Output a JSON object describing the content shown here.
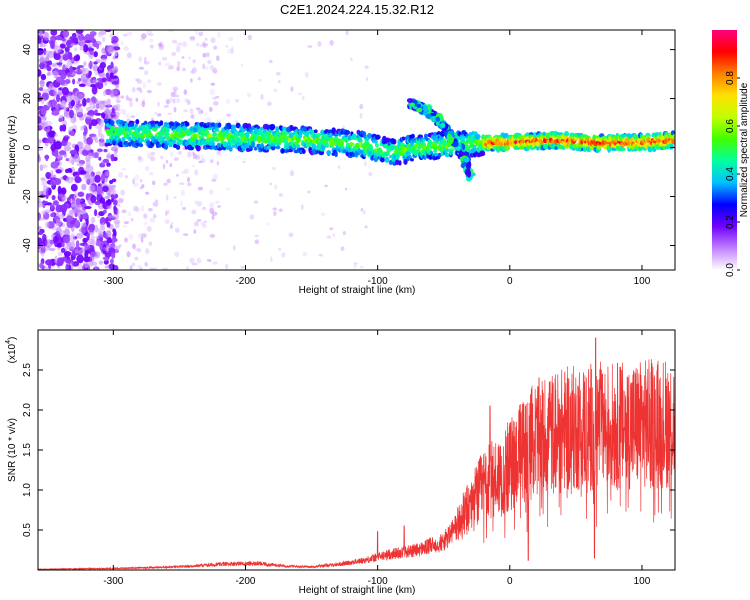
{
  "title": "C2E1.2024.224.15.32.R12",
  "chart_data": [
    {
      "type": "heatmap",
      "xlabel": "Height of straight line (km)",
      "ylabel": "Frequency (Hz)",
      "xlim": [
        -357,
        125
      ],
      "ylim": [
        -50,
        48
      ],
      "x_ticks": [
        -300,
        -200,
        -100,
        0,
        100
      ],
      "y_ticks": [
        -40,
        -20,
        0,
        20,
        40
      ],
      "colorbar": {
        "label": "Normalized spectral amplitude",
        "range": [
          0,
          1
        ],
        "ticks": [
          0.0,
          0.2,
          0.4,
          0.6,
          0.8
        ],
        "colors": [
          "#ffffff",
          "#c080ff",
          "#7000ff",
          "#0000ff",
          "#00c0ff",
          "#00ffa0",
          "#40ff00",
          "#c0ff00",
          "#ffe000",
          "#ff8000",
          "#ff0000",
          "#ff0080"
        ]
      },
      "ridge": [
        {
          "x": -300,
          "f": 6
        },
        {
          "x": -250,
          "f": 5
        },
        {
          "x": -200,
          "f": 4
        },
        {
          "x": -150,
          "f": 3
        },
        {
          "x": -110,
          "f": 1
        },
        {
          "x": -90,
          "f": -2
        },
        {
          "x": -70,
          "f": 0
        },
        {
          "x": -50,
          "f": 1
        },
        {
          "x": -20,
          "f": 2
        },
        {
          "x": 0,
          "f": 2
        },
        {
          "x": 30,
          "f": 3
        },
        {
          "x": 60,
          "f": 2
        },
        {
          "x": 100,
          "f": 2
        },
        {
          "x": 125,
          "f": 3
        }
      ],
      "branches": [
        {
          "x": -75,
          "f": 18
        },
        {
          "x": -65,
          "f": 16
        },
        {
          "x": -55,
          "f": 12
        },
        {
          "x": -45,
          "f": 6
        },
        {
          "x": -35,
          "f": -4
        },
        {
          "x": -30,
          "f": -12
        }
      ]
    },
    {
      "type": "line",
      "xlabel": "Height of straight line (km)",
      "ylabel": "SNR (10 * v/v)",
      "y_multiplier": "(x10",
      "y_multiplier_exp": "4",
      "xlim": [
        -357,
        125
      ],
      "ylim": [
        0,
        3.0
      ],
      "x_ticks": [
        -300,
        -200,
        -100,
        0,
        100
      ],
      "y_ticks": [
        0.5,
        1.0,
        1.5,
        2.0,
        2.5
      ],
      "series_color": "#ee3333",
      "envelope": [
        {
          "x": -357,
          "y": 0.01
        },
        {
          "x": -300,
          "y": 0.02
        },
        {
          "x": -250,
          "y": 0.04
        },
        {
          "x": -210,
          "y": 0.08
        },
        {
          "x": -190,
          "y": 0.08
        },
        {
          "x": -170,
          "y": 0.05
        },
        {
          "x": -150,
          "y": 0.04
        },
        {
          "x": -130,
          "y": 0.07
        },
        {
          "x": -110,
          "y": 0.12
        },
        {
          "x": -90,
          "y": 0.2
        },
        {
          "x": -70,
          "y": 0.25
        },
        {
          "x": -50,
          "y": 0.35
        },
        {
          "x": -40,
          "y": 0.55
        },
        {
          "x": -30,
          "y": 0.8
        },
        {
          "x": -20,
          "y": 1.05
        },
        {
          "x": -10,
          "y": 1.15
        },
        {
          "x": 0,
          "y": 1.3
        },
        {
          "x": 10,
          "y": 1.5
        },
        {
          "x": 20,
          "y": 1.65
        },
        {
          "x": 40,
          "y": 1.75
        },
        {
          "x": 60,
          "y": 1.8
        },
        {
          "x": 80,
          "y": 1.8
        },
        {
          "x": 100,
          "y": 1.82
        },
        {
          "x": 125,
          "y": 1.85
        }
      ],
      "spikes": [
        {
          "x": -100,
          "y": 0.48
        },
        {
          "x": -80,
          "y": 0.55
        },
        {
          "x": -15,
          "y": 2.05
        },
        {
          "x": 12,
          "y": 2.05
        },
        {
          "x": 30,
          "y": 2.35
        },
        {
          "x": 65,
          "y": 2.9
        },
        {
          "x": 70,
          "y": 2.45
        },
        {
          "x": 120,
          "y": 2.35
        }
      ],
      "dips": [
        {
          "x": 14,
          "y": 0.12
        },
        {
          "x": 64,
          "y": 0.15
        }
      ]
    }
  ]
}
